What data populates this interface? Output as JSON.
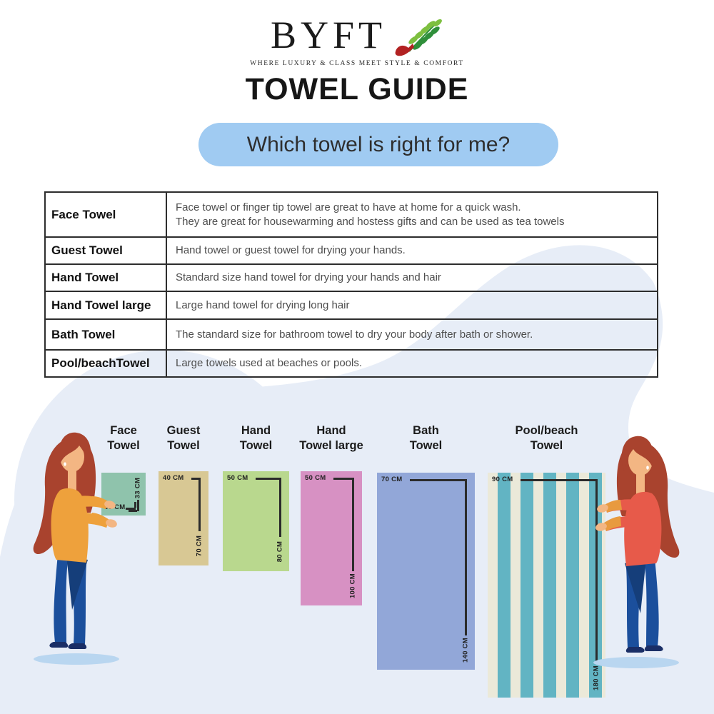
{
  "brand": {
    "name": "BYFT",
    "tagline": "WHERE LUXURY & CLASS MEET STYLE & COMFORT"
  },
  "page_title": "TOWEL GUIDE",
  "banner": {
    "text": "Which towel is right for me?",
    "bg_color": "#a0cbf2"
  },
  "table": {
    "rows": [
      {
        "type": "Face Towel",
        "description": "Face towel or finger tip towel are great to have at home for a quick wash.\nThey are great for housewarming and hostess gifts and can be used as tea towels"
      },
      {
        "type": "Guest Towel",
        "description": "Hand towel or guest towel for drying your hands."
      },
      {
        "type": "Hand Towel",
        "description": "Standard size hand towel for drying your hands and hair"
      },
      {
        "type": "Hand Towel large",
        "description": "Large hand towel for drying long hair"
      },
      {
        "type": "Bath Towel",
        "description": "The standard size for bathroom towel to dry your body after bath or shower."
      },
      {
        "type": "Pool/beachTowel",
        "description": "Large towels used at beaches or pools."
      }
    ]
  },
  "size_chart": {
    "items": [
      {
        "id": "face",
        "label_line1": "Face",
        "label_line2": "Towel",
        "width_label": "33 CM",
        "height_label": "33 CM",
        "color": "#8fc3ac",
        "style": "face"
      },
      {
        "id": "guest",
        "label_line1": "Guest",
        "label_line2": "Towel",
        "width_label": "40 CM",
        "height_label": "70 CM",
        "color": "#d8c894",
        "style": "standard"
      },
      {
        "id": "hand",
        "label_line1": "Hand",
        "label_line2": "Towel",
        "width_label": "50 CM",
        "height_label": "80 CM",
        "color": "#b9d88e",
        "style": "standard"
      },
      {
        "id": "hand_large",
        "label_line1": "Hand",
        "label_line2": "Towel large",
        "width_label": "50 CM",
        "height_label": "100 CM",
        "color": "#d791c3",
        "style": "standard"
      },
      {
        "id": "bath",
        "label_line1": "Bath",
        "label_line2": "Towel",
        "width_label": "70 CM",
        "height_label": "140 CM",
        "color": "#92a7d8",
        "style": "standard"
      },
      {
        "id": "pool",
        "label_line1": "Pool/beach",
        "label_line2": "Towel",
        "width_label": "90 CM",
        "height_label": "180 CM",
        "color": "#ebe9d9",
        "stripe_color": "#62b4c3",
        "striped": true,
        "style": "standard"
      }
    ]
  },
  "background": {
    "blob_color": "#e7edf7"
  },
  "logo_leaf_colors": {
    "dark_green": "#2f8f3a",
    "light_green": "#7dbf3f",
    "red": "#b22222"
  },
  "illustration_colors": {
    "hair": "#a9432e",
    "skin": "#f3b683",
    "left_shirt": "#eea13c",
    "right_shirt": "#e75a4a",
    "sleeve_accent": "#e89a3f",
    "jeans": "#1b4f9c",
    "jeans_shade": "#153e7a",
    "shoes": "#1a2e66",
    "shadow": "#b9d6f0"
  }
}
